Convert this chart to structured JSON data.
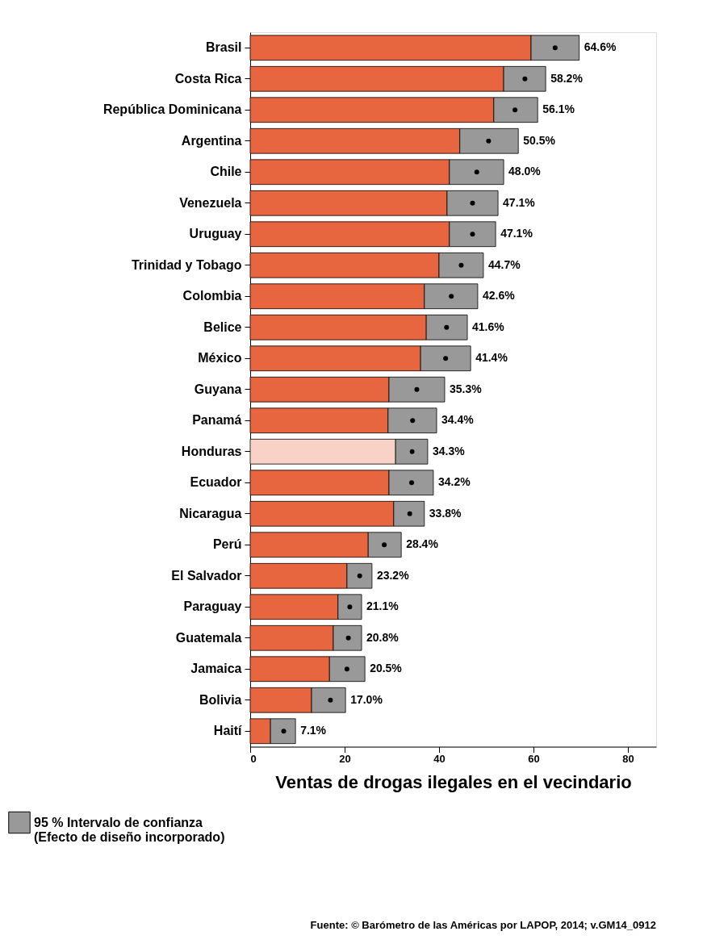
{
  "chart_data": {
    "type": "bar",
    "orientation": "horizontal",
    "stacked": true,
    "xlabel": "Ventas de drogas ilegales en el vecindario",
    "categories": [
      "Brasil",
      "Costa Rica",
      "República Dominicana",
      "Argentina",
      "Chile",
      "Venezuela",
      "Uruguay",
      "Trinidad y Tobago",
      "Colombia",
      "Belice",
      "México",
      "Guyana",
      "Panamá",
      "Honduras",
      "Ecuador",
      "Nicaragua",
      "Perú",
      "El Salvador",
      "Paraguay",
      "Guatemala",
      "Jamaica",
      "Bolivia",
      "Haití"
    ],
    "series": [
      {
        "colors": [
          "#e8663f",
          "#e8663f",
          "#e8663f",
          "#e8663f",
          "#e8663f",
          "#e8663f",
          "#e8663f",
          "#e8663f",
          "#e8663f",
          "#e8663f",
          "#e8663f",
          "#e8663f",
          "#e8663f",
          "#f8d2c6",
          "#e8663f",
          "#e8663f",
          "#e8663f",
          "#e8663f",
          "#e8663f",
          "#e8663f",
          "#e8663f",
          "#e8663f",
          "#e8663f"
        ],
        "values": [
          59.5,
          53.7,
          51.6,
          44.4,
          42.2,
          41.7,
          42.2,
          40.0,
          36.9,
          37.3,
          36.1,
          29.4,
          29.2,
          30.8,
          29.4,
          30.4,
          25.0,
          20.5,
          18.6,
          17.6,
          16.8,
          13.0,
          4.3
        ]
      },
      {
        "name": "95 % Intervalo de confianza\n(Efecto de diseño incorporado)",
        "color": "#999999",
        "values": [
          10.2,
          8.9,
          9.3,
          12.4,
          11.5,
          10.8,
          9.8,
          9.4,
          11.3,
          8.7,
          10.6,
          11.8,
          10.3,
          6.8,
          9.4,
          6.5,
          7.0,
          5.3,
          5.0,
          6.0,
          7.5,
          7.2,
          5.3
        ]
      },
      {
        "type": "scatter",
        "color": "#000000",
        "marker": "circle",
        "values": [
          64.6,
          58.2,
          56.1,
          50.5,
          48.0,
          47.1,
          47.1,
          44.7,
          42.6,
          41.6,
          41.4,
          35.3,
          34.4,
          34.3,
          34.2,
          33.8,
          28.4,
          23.2,
          21.1,
          20.8,
          20.5,
          17.0,
          7.1
        ],
        "value_labels": [
          "64.6%",
          "58.2%",
          "56.1%",
          "50.5%",
          "48.0%",
          "47.1%",
          "47.1%",
          "44.7%",
          "42.6%",
          "41.6%",
          "41.4%",
          "35.3%",
          "34.4%",
          "34.3%",
          "34.2%",
          "33.8%",
          "28.4%",
          "23.2%",
          "21.1%",
          "20.8%",
          "20.5%",
          "17.0%",
          "7.1%"
        ]
      }
    ],
    "xlim": [
      0,
      86
    ],
    "xticks": [
      0,
      20,
      40,
      60,
      80
    ],
    "grid": false,
    "legend": "bottom left",
    "annotations": [
      "Fuente: © Barómetro de las Américas por LAPOP, 2014; v.GM14_0912"
    ]
  }
}
